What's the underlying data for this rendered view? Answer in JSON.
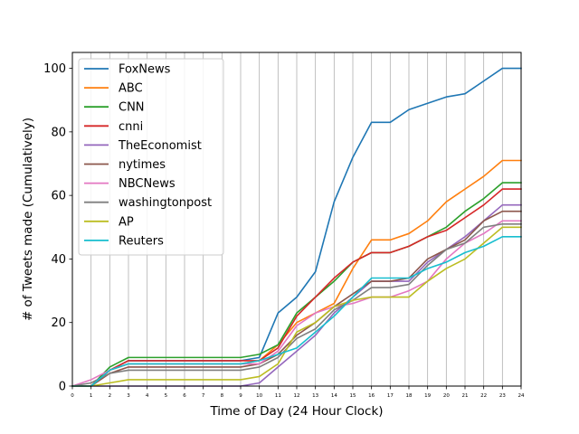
{
  "chart_data": {
    "type": "line",
    "xlabel": "Time of Day (24 Hour Clock)",
    "ylabel": "# of Tweets made (Cumulatively)",
    "xlim": [
      0,
      24
    ],
    "ylim": [
      0,
      105
    ],
    "xticks": [
      0,
      1,
      2,
      3,
      4,
      5,
      6,
      7,
      8,
      9,
      10,
      11,
      12,
      13,
      14,
      15,
      16,
      17,
      18,
      19,
      20,
      21,
      22,
      23,
      24
    ],
    "yticks": [
      0,
      20,
      40,
      60,
      80,
      100
    ],
    "vertical_grid": true,
    "horizontal_grid": false,
    "legend_position": "upper-left",
    "x": [
      0,
      1,
      2,
      3,
      4,
      5,
      6,
      7,
      8,
      9,
      10,
      11,
      12,
      13,
      14,
      15,
      16,
      17,
      18,
      19,
      20,
      21,
      22,
      23,
      24
    ],
    "series": [
      {
        "name": "FoxNews",
        "color": "#1f77b4",
        "values": [
          0,
          0,
          5,
          8,
          8,
          8,
          8,
          8,
          8,
          8,
          9,
          23,
          28,
          36,
          58,
          72,
          83,
          83,
          87,
          89,
          91,
          92,
          96,
          100,
          100
        ]
      },
      {
        "name": "ABC",
        "color": "#ff7f0e",
        "values": [
          0,
          0,
          5,
          7,
          7,
          7,
          7,
          7,
          7,
          7,
          8,
          13,
          20,
          23,
          26,
          37,
          46,
          46,
          48,
          52,
          58,
          62,
          66,
          71,
          71
        ]
      },
      {
        "name": "CNN",
        "color": "#2ca02c",
        "values": [
          0,
          0,
          6,
          9,
          9,
          9,
          9,
          9,
          9,
          9,
          10,
          13,
          23,
          28,
          33,
          39,
          42,
          42,
          44,
          47,
          50,
          55,
          59,
          64,
          64
        ]
      },
      {
        "name": "cnni",
        "color": "#d62728",
        "values": [
          0,
          0,
          5,
          8,
          8,
          8,
          8,
          8,
          8,
          8,
          8,
          12,
          22,
          28,
          34,
          39,
          42,
          42,
          44,
          47,
          49,
          53,
          57,
          62,
          62
        ]
      },
      {
        "name": "TheEconomist",
        "color": "#9467bd",
        "values": [
          0,
          0,
          0,
          0,
          0,
          0,
          0,
          0,
          0,
          0,
          1,
          6,
          11,
          16,
          23,
          28,
          33,
          33,
          33,
          39,
          43,
          47,
          52,
          57,
          57
        ]
      },
      {
        "name": "nytimes",
        "color": "#8c564b",
        "values": [
          0,
          0,
          4,
          6,
          6,
          6,
          6,
          6,
          6,
          6,
          7,
          10,
          16,
          20,
          25,
          29,
          33,
          33,
          34,
          40,
          43,
          46,
          52,
          55,
          55
        ]
      },
      {
        "name": "NBCNews",
        "color": "#e377c2",
        "values": [
          0,
          2,
          5,
          7,
          7,
          7,
          7,
          7,
          7,
          7,
          7,
          11,
          19,
          23,
          25,
          26,
          28,
          28,
          30,
          33,
          40,
          45,
          48,
          52,
          52
        ]
      },
      {
        "name": "washingtonpost",
        "color": "#7f7f7f",
        "values": [
          0,
          1,
          4,
          5,
          5,
          5,
          5,
          5,
          5,
          5,
          6,
          9,
          15,
          18,
          24,
          27,
          31,
          31,
          32,
          38,
          43,
          45,
          50,
          51,
          51
        ]
      },
      {
        "name": "AP",
        "color": "#bcbd22",
        "values": [
          0,
          0,
          1,
          2,
          2,
          2,
          2,
          2,
          2,
          2,
          3,
          7,
          17,
          20,
          25,
          27,
          28,
          28,
          28,
          33,
          37,
          40,
          45,
          50,
          50
        ]
      },
      {
        "name": "Reuters",
        "color": "#17becf",
        "values": [
          0,
          0,
          5,
          7,
          7,
          7,
          7,
          7,
          7,
          7,
          8,
          10,
          12,
          17,
          22,
          28,
          34,
          34,
          34,
          37,
          39,
          42,
          44,
          47,
          47
        ]
      }
    ]
  }
}
